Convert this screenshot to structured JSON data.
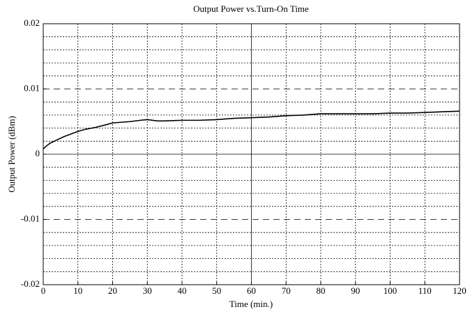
{
  "chart_data": {
    "type": "line",
    "title": "Output Power vs.Turn-On Time",
    "x_label": "Time (min.)",
    "y_label": "Output Power (dBm)",
    "x": [
      0,
      1,
      2,
      4,
      6,
      8,
      10,
      12,
      15,
      18,
      20,
      25,
      28,
      30,
      33,
      35,
      40,
      45,
      50,
      55,
      60,
      65,
      70,
      75,
      80,
      85,
      90,
      95,
      100,
      105,
      110,
      115,
      120
    ],
    "values": [
      0.0008,
      0.0013,
      0.0017,
      0.0022,
      0.0027,
      0.0031,
      0.0035,
      0.0038,
      0.0041,
      0.0045,
      0.0048,
      0.005,
      0.0052,
      0.0053,
      0.0051,
      0.0051,
      0.0052,
      0.0052,
      0.0053,
      0.0055,
      0.0056,
      0.0057,
      0.0059,
      0.006,
      0.0062,
      0.0062,
      0.0062,
      0.0062,
      0.0063,
      0.0063,
      0.0064,
      0.0065,
      0.0066
    ],
    "color": "#000000",
    "xlim": [
      0,
      120
    ],
    "xticks": [
      0,
      10,
      20,
      30,
      40,
      50,
      60,
      70,
      80,
      90,
      100,
      110,
      120
    ],
    "ylim": [
      -0.02,
      0.02
    ],
    "yticks": [
      -0.02,
      -0.01,
      0,
      0.01,
      0.02
    ],
    "grid": true
  }
}
